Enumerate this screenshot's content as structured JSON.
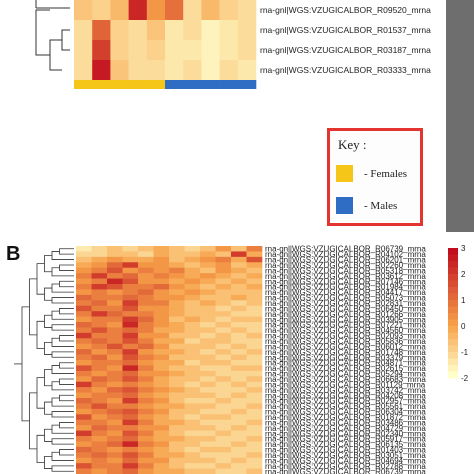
{
  "panel_b_label": "B",
  "key": {
    "title": "Key :",
    "items": [
      {
        "label": "- Females",
        "color": "#f5c518"
      },
      {
        "label": "- Males",
        "color": "#2f6cc4"
      }
    ]
  },
  "colors": {
    "low": "#ffffcc",
    "mid": "#f7a24a",
    "high": "#c10d1f",
    "frame_gray": "#6e6e6e",
    "key_border": "#e3342f"
  },
  "chart_data": [
    {
      "type": "heatmap",
      "row_labels": [
        "rna-gnl|WGS:VZUGICALBOR_R09520_mrna",
        "rna-gnl|WGS:VZUGICALBOR_R01537_mrna",
        "rna-gnl|WGS:VZUGICALBOR_R03187_mrna",
        "rna-gnl|WGS:VZUGICALBOR_R03333_mrna"
      ],
      "sample_groups": [
        "Females",
        "Females",
        "Females",
        "Females",
        "Females",
        "Males",
        "Males",
        "Males",
        "Males",
        "Males"
      ],
      "values": [
        [
          0.5,
          0.4,
          0.6,
          1.8,
          0.9,
          1.2,
          0.3,
          0.6,
          0.4,
          0.3
        ],
        [
          0.3,
          1.3,
          0.4,
          0.3,
          0.5,
          0.2,
          0.3,
          0.1,
          0.2,
          0.3
        ],
        [
          0.3,
          1.6,
          0.4,
          0.3,
          0.4,
          0.2,
          0.2,
          0.1,
          0.2,
          0.3
        ],
        [
          0.3,
          1.9,
          0.5,
          0.3,
          0.3,
          0.2,
          0.3,
          0.1,
          0.3,
          0.2
        ]
      ]
    },
    {
      "type": "heatmap",
      "row_labels": [
        "rna-gnl|WGS:VZUGICALBOR_R06739_mrna",
        "rna-gnl|WGS:VZUGICALBOR_R04102_mrna",
        "rna-gnl|WGS:VZUGICALBOR_R06201_mrna",
        "rna-gnl|WGS:VZUGICALBOR_R02260_mrna",
        "rna-gnl|WGS:VZUGICALBOR_R05318_mrna",
        "rna-gnl|WGS:VZUGICALBOR_R03612_mrna",
        "rna-gnl|WGS:VZUGICALBOR_R07146_mrna",
        "rna-gnl|WGS:VZUGICALBOR_R01984_mrna",
        "rna-gnl|WGS:VZUGICALBOR_R04417_mrna",
        "rna-gnl|WGS:VZUGICALBOR_R05073_mrna",
        "rna-gnl|WGS:VZUGICALBOR_R02831_mrna",
        "rna-gnl|WGS:VZUGICALBOR_R06450_mrna",
        "rna-gnl|WGS:VZUGICALBOR_R01266_mrna",
        "rna-gnl|WGS:VZUGICALBOR_R03905_mrna",
        "rna-gnl|WGS:VZUGICALBOR_R07221_mrna",
        "rna-gnl|WGS:VZUGICALBOR_R04560_mrna",
        "rna-gnl|WGS:VZUGICALBOR_R02093_mrna",
        "rna-gnl|WGS:VZUGICALBOR_R05836_mrna",
        "rna-gnl|WGS:VZUGICALBOR_R06012_mrna",
        "rna-gnl|WGS:VZUGICALBOR_R01748_mrna",
        "rna-gnl|WGS:VZUGICALBOR_R03379_mrna",
        "rna-gnl|WGS:VZUGICALBOR_R04871_mrna",
        "rna-gnl|WGS:VZUGICALBOR_R02615_mrna",
        "rna-gnl|WGS:VZUGICALBOR_R05294_mrna",
        "rna-gnl|WGS:VZUGICALBOR_R06683_mrna",
        "rna-gnl|WGS:VZUGICALBOR_R01129_mrna",
        "rna-gnl|WGS:VZUGICALBOR_R03742_mrna",
        "rna-gnl|WGS:VZUGICALBOR_R04208_mrna",
        "rna-gnl|WGS:VZUGICALBOR_R02957_mrna",
        "rna-gnl|WGS:VZUGICALBOR_R05561_mrna",
        "rna-gnl|WGS:VZUGICALBOR_R06304_mrna",
        "rna-gnl|WGS:VZUGICALBOR_R01872_mrna",
        "rna-gnl|WGS:VZUGICALBOR_R03486_mrna",
        "rna-gnl|WGS:VZUGICALBOR_R04729_mrna",
        "rna-gnl|WGS:VZUGICALBOR_R02340_mrna",
        "rna-gnl|WGS:VZUGICALBOR_R05917_mrna",
        "rna-gnl|WGS:VZUGICALBOR_R06135_mrna",
        "rna-gnl|WGS:VZUGICALBOR_R01403_mrna",
        "rna-gnl|WGS:VZUGICALBOR_R03051_mrna",
        "rna-gnl|WGS:VZUGICALBOR_R04694_mrna",
        "rna-gnl|WGS:VZUGICALBOR_R02788_mrna",
        "rna-gnl|WGS:VZUGICALBOR_R06739_mrna"
      ],
      "n_cols": 12,
      "values": [
        [
          0.1,
          0.2,
          0.3,
          0.2,
          0.3,
          0.4,
          0.3,
          0.2,
          0.3,
          0.5,
          0.3,
          0.6
        ],
        [
          0.2,
          0.2,
          0.3,
          0.3,
          0.2,
          0.4,
          0.3,
          0.3,
          0.4,
          0.3,
          0.9,
          0.4
        ],
        [
          0.3,
          0.4,
          0.5,
          0.4,
          0.4,
          0.5,
          0.3,
          0.4,
          0.5,
          0.6,
          0.4,
          0.8
        ],
        [
          0.4,
          0.5,
          0.7,
          0.9,
          0.5,
          0.5,
          0.4,
          0.3,
          0.4,
          0.5,
          0.3,
          0.4
        ],
        [
          0.5,
          0.6,
          0.8,
          0.5,
          0.6,
          0.5,
          0.6,
          0.4,
          0.3,
          0.5,
          0.4,
          0.3
        ],
        [
          0.6,
          0.9,
          0.6,
          0.7,
          0.5,
          0.6,
          0.5,
          0.4,
          0.5,
          0.4,
          0.3,
          0.4
        ],
        [
          0.5,
          0.6,
          1.0,
          0.8,
          0.5,
          0.5,
          0.4,
          0.5,
          0.4,
          0.3,
          0.4,
          0.3
        ],
        [
          0.6,
          0.9,
          0.8,
          0.6,
          0.6,
          0.7,
          0.5,
          0.4,
          0.3,
          0.4,
          0.3,
          0.4
        ],
        [
          0.5,
          0.6,
          0.5,
          0.6,
          0.7,
          0.5,
          0.4,
          0.5,
          0.4,
          0.3,
          0.3,
          0.3
        ],
        [
          0.7,
          0.6,
          0.6,
          0.7,
          0.6,
          0.5,
          0.5,
          0.4,
          0.3,
          0.3,
          0.4,
          0.3
        ],
        [
          0.6,
          0.7,
          0.5,
          0.9,
          0.6,
          0.6,
          0.4,
          0.3,
          0.4,
          0.3,
          0.2,
          0.3
        ],
        [
          0.8,
          0.6,
          0.6,
          0.8,
          0.5,
          0.5,
          0.4,
          0.3,
          0.3,
          0.2,
          0.3,
          0.2
        ],
        [
          0.6,
          0.9,
          0.7,
          0.6,
          0.6,
          0.5,
          0.4,
          0.3,
          0.3,
          0.3,
          0.2,
          0.2
        ],
        [
          0.5,
          0.6,
          0.6,
          0.9,
          0.7,
          0.5,
          0.3,
          0.4,
          0.3,
          0.2,
          0.3,
          0.3
        ],
        [
          0.7,
          0.6,
          0.5,
          1.0,
          0.6,
          0.5,
          0.4,
          0.3,
          0.2,
          0.3,
          0.2,
          0.2
        ],
        [
          0.6,
          0.8,
          0.6,
          0.7,
          0.6,
          0.4,
          0.4,
          0.3,
          0.3,
          0.2,
          0.3,
          0.2
        ],
        [
          0.9,
          0.6,
          0.6,
          0.9,
          0.5,
          0.5,
          0.3,
          0.3,
          0.2,
          0.3,
          0.2,
          0.3
        ],
        [
          0.6,
          0.7,
          0.6,
          0.8,
          0.6,
          0.4,
          0.4,
          0.2,
          0.3,
          0.3,
          0.2,
          0.2
        ],
        [
          0.5,
          0.6,
          0.8,
          0.6,
          0.7,
          0.5,
          0.3,
          0.3,
          0.3,
          0.2,
          0.3,
          0.2
        ],
        [
          0.7,
          0.5,
          0.6,
          0.9,
          0.5,
          0.4,
          0.4,
          0.3,
          0.2,
          0.3,
          0.2,
          0.3
        ],
        [
          0.6,
          0.7,
          0.5,
          0.8,
          0.6,
          0.5,
          0.3,
          0.3,
          0.3,
          0.2,
          0.3,
          0.2
        ],
        [
          0.5,
          0.6,
          0.6,
          0.7,
          0.5,
          0.4,
          0.4,
          0.2,
          0.3,
          0.3,
          0.2,
          0.2
        ],
        [
          0.8,
          0.6,
          0.5,
          1.0,
          0.6,
          0.4,
          0.3,
          0.3,
          0.2,
          0.2,
          0.3,
          0.3
        ],
        [
          0.6,
          0.5,
          0.6,
          0.7,
          0.5,
          0.5,
          0.4,
          0.3,
          0.3,
          0.2,
          0.2,
          0.2
        ],
        [
          0.5,
          0.7,
          0.6,
          0.8,
          0.6,
          0.4,
          0.3,
          0.3,
          0.2,
          0.3,
          0.2,
          0.3
        ],
        [
          0.9,
          0.6,
          0.5,
          0.6,
          0.5,
          0.4,
          0.3,
          0.2,
          0.3,
          0.2,
          0.3,
          0.2
        ],
        [
          0.6,
          0.5,
          0.7,
          0.8,
          0.6,
          0.5,
          0.4,
          0.3,
          0.2,
          0.2,
          0.2,
          0.3
        ],
        [
          0.5,
          0.6,
          0.6,
          0.7,
          0.5,
          0.4,
          0.3,
          0.3,
          0.3,
          0.2,
          0.3,
          0.2
        ],
        [
          0.7,
          0.6,
          0.5,
          0.9,
          0.6,
          0.5,
          0.3,
          0.2,
          0.2,
          0.3,
          0.2,
          0.2
        ],
        [
          0.6,
          0.8,
          0.6,
          0.6,
          0.5,
          0.4,
          0.4,
          0.3,
          0.3,
          0.2,
          0.2,
          0.3
        ],
        [
          0.5,
          0.6,
          0.7,
          0.8,
          0.6,
          0.5,
          0.3,
          0.3,
          0.2,
          0.2,
          0.3,
          0.2
        ],
        [
          0.8,
          0.5,
          0.6,
          0.7,
          0.5,
          0.4,
          0.3,
          0.2,
          0.3,
          0.3,
          0.2,
          0.2
        ],
        [
          0.6,
          0.6,
          0.5,
          0.9,
          0.6,
          0.4,
          0.4,
          0.3,
          0.2,
          0.2,
          0.2,
          0.3
        ],
        [
          0.5,
          0.7,
          0.6,
          0.6,
          0.5,
          0.5,
          0.3,
          0.3,
          0.3,
          0.2,
          0.3,
          0.2
        ],
        [
          0.9,
          0.6,
          0.5,
          0.8,
          0.6,
          0.4,
          0.3,
          0.2,
          0.2,
          0.3,
          0.2,
          0.2
        ],
        [
          0.6,
          0.5,
          0.6,
          0.7,
          0.5,
          0.4,
          0.4,
          0.3,
          0.3,
          0.2,
          0.2,
          0.3
        ],
        [
          0.5,
          0.6,
          0.7,
          1.0,
          0.6,
          0.5,
          0.3,
          0.3,
          0.2,
          0.2,
          0.3,
          0.2
        ],
        [
          0.7,
          0.6,
          0.5,
          0.6,
          0.5,
          0.4,
          0.3,
          0.2,
          0.3,
          0.3,
          0.2,
          0.2
        ],
        [
          0.6,
          0.7,
          0.6,
          0.8,
          0.6,
          0.4,
          0.4,
          0.3,
          0.2,
          0.2,
          0.2,
          0.3
        ],
        [
          0.5,
          0.6,
          0.5,
          0.7,
          0.5,
          0.5,
          0.3,
          0.3,
          0.3,
          0.2,
          0.3,
          0.2
        ],
        [
          0.8,
          0.6,
          0.6,
          0.9,
          0.6,
          0.4,
          0.3,
          0.2,
          0.2,
          0.3,
          0.2,
          0.2
        ],
        [
          0.6,
          0.5,
          0.6,
          0.7,
          0.5,
          0.4,
          0.4,
          0.3,
          0.3,
          0.2,
          0.2,
          0.3
        ]
      ],
      "legend_ticks": [
        "3",
        "2",
        "1",
        "0",
        "-1",
        "-2"
      ]
    }
  ]
}
